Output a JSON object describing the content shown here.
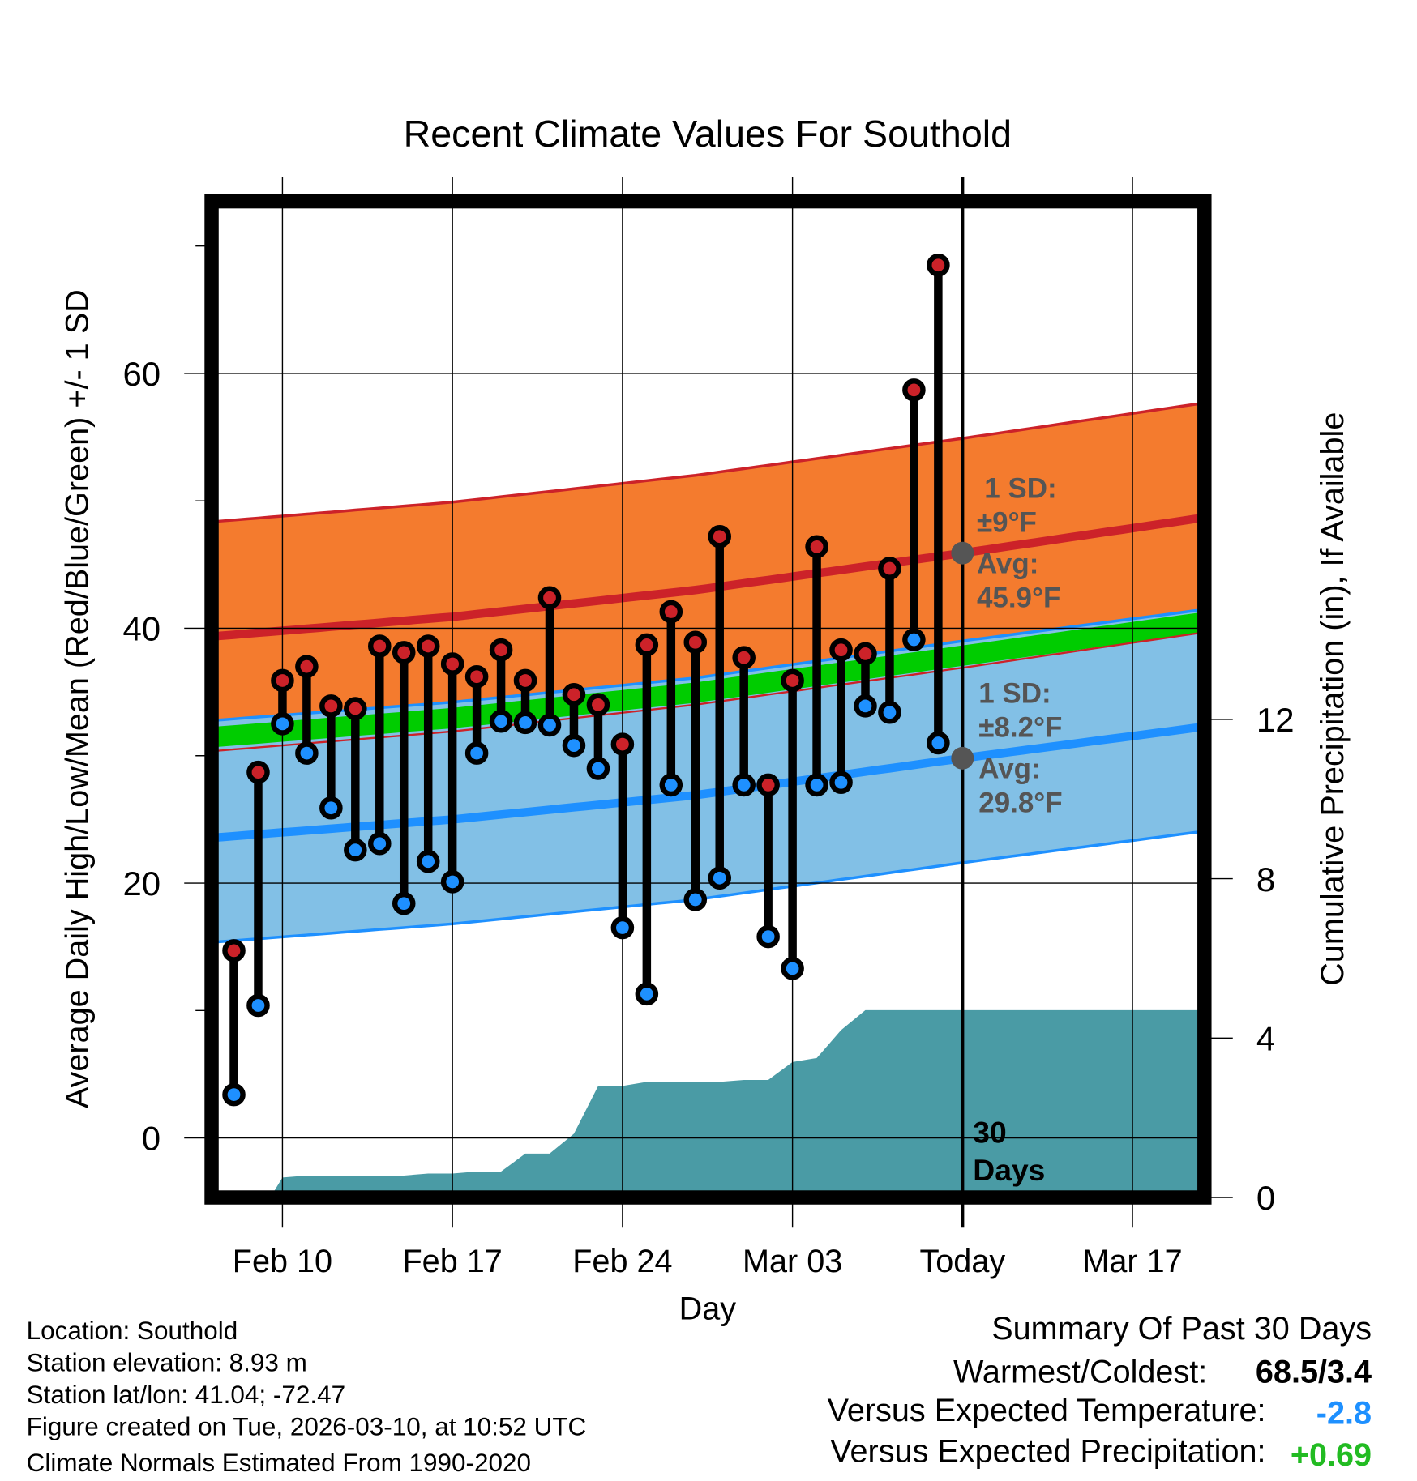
{
  "chart_data": {
    "type": "line",
    "title": "Recent Climate Values For Southold",
    "xlabel": "Day",
    "ylabel": "Average Daily High/Low/Mean (Red/Blue/Green) +/- 1 SD",
    "ylabel_right": "Cumulative Precipitation (in), If Available",
    "ylim": [
      -4.67,
      73.5
    ],
    "ylim_right": [
      0,
      25
    ],
    "yticks": [
      "0",
      "20",
      "40",
      "60"
    ],
    "yticks_right": [
      "0",
      "4",
      "8",
      "12"
    ],
    "xticks": [
      "Feb 10",
      "Feb 17",
      "Feb 24",
      "Mar 03",
      "Today",
      "Mar 17"
    ],
    "xtick_day_index": [
      2,
      9,
      16,
      23,
      30,
      37
    ],
    "days": [
      "Feb 08",
      "Feb 09",
      "Feb 10",
      "Feb 11",
      "Feb 12",
      "Feb 13",
      "Feb 14",
      "Feb 15",
      "Feb 16",
      "Feb 17",
      "Feb 18",
      "Feb 19",
      "Feb 20",
      "Feb 21",
      "Feb 22",
      "Feb 23",
      "Feb 24",
      "Feb 25",
      "Feb 26",
      "Feb 27",
      "Feb 28",
      "Mar 01",
      "Mar 02",
      "Mar 03",
      "Mar 04",
      "Mar 05",
      "Mar 06",
      "Mar 07",
      "Mar 08",
      "Mar 09"
    ],
    "series": [
      {
        "name": "Daily High",
        "color": "#CC2229",
        "values": [
          14.7,
          28.7,
          35.9,
          37.0,
          33.9,
          33.7,
          38.6,
          38.1,
          38.6,
          37.2,
          36.2,
          38.3,
          35.9,
          42.4,
          34.8,
          34.0,
          30.9,
          38.7,
          41.3,
          38.9,
          47.2,
          37.7,
          27.7,
          35.9,
          46.4,
          38.3,
          38.0,
          44.7,
          58.7,
          68.5
        ]
      },
      {
        "name": "Daily Low",
        "color": "#1E90FF",
        "values": [
          3.4,
          10.4,
          32.5,
          30.2,
          25.9,
          22.6,
          23.1,
          18.4,
          21.7,
          20.1,
          30.2,
          32.7,
          32.6,
          32.4,
          30.8,
          29.0,
          16.5,
          11.3,
          27.7,
          18.7,
          20.4,
          27.7,
          15.8,
          13.3,
          27.7,
          27.9,
          33.9,
          33.4,
          39.1,
          31.0
        ]
      },
      {
        "name": "Cumulative Precipitation",
        "color": "#4A9BA5",
        "values": [
          0,
          0,
          0.5,
          0.55,
          0.55,
          0.55,
          0.55,
          0.55,
          0.6,
          0.6,
          0.65,
          0.65,
          1.1,
          1.1,
          1.6,
          2.8,
          2.8,
          2.9,
          2.9,
          2.9,
          2.9,
          2.95,
          2.95,
          3.4,
          3.5,
          4.2,
          4.7,
          4.7,
          4.7,
          4.7
        ]
      }
    ],
    "normals": {
      "day_index": [
        -0.6,
        9,
        19,
        30,
        39.65
      ],
      "high_mean": [
        39.4,
        40.9,
        43.0,
        45.9,
        48.6
      ],
      "high_sd": 9,
      "low_mean": [
        23.6,
        25.0,
        26.9,
        29.8,
        32.2
      ],
      "low_sd": 8.2,
      "colors": {
        "high_band": "#F47B2E",
        "low_band": "#82C0E6",
        "mean": "#00CC00",
        "high_line": "#CC2229",
        "low_line": "#1E90FF"
      }
    },
    "annotations": {
      "high_sd": "1 SD:",
      "high_sd_val": "±9°F",
      "high_avg": "Avg:",
      "high_avg_val": "45.9°F",
      "low_sd": "1 SD:",
      "low_sd_val": "±8.2°F",
      "low_avg": "Avg:",
      "low_avg_val": "29.8°F",
      "days_line1": "30",
      "days_line2": "Days"
    }
  },
  "info": {
    "location": "Location: Southold",
    "elevation": "Station elevation: 8.93 m",
    "latlon": "Station lat/lon: 41.04; -72.47",
    "created": "Figure created on Tue, 2026-03-10, at 10:52 UTC",
    "normals": "Climate Normals Estimated From 1990-2020"
  },
  "summary": {
    "title": "Summary Of Past 30 Days",
    "warmest_label": "Warmest/Coldest:",
    "warmest_value": "68.5/3.4",
    "temp_label": "Versus Expected Temperature:",
    "temp_value": "-2.8",
    "temp_color": "#1E90FF",
    "precip_label": "Versus Expected Precipitation:",
    "precip_value": "+0.69",
    "precip_color": "#22BB22"
  }
}
